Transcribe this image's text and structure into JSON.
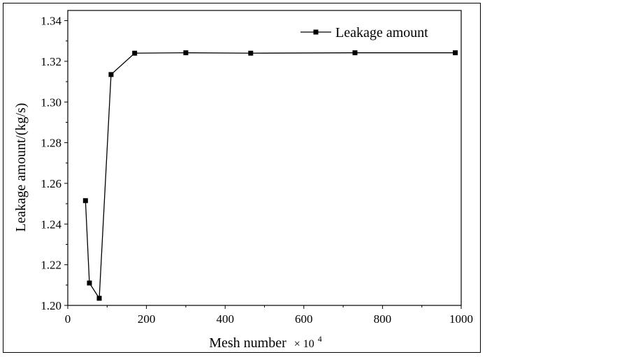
{
  "chart_data": {
    "type": "line",
    "title": "",
    "xlabel": "Mesh number",
    "xlabel_multiplier": "× 10",
    "xlabel_exponent": "4",
    "ylabel": "Leakage amount/(kg/s)",
    "xlim": [
      0,
      1000
    ],
    "ylim": [
      1.2,
      1.345
    ],
    "xticks": [
      0,
      200,
      400,
      600,
      800,
      1000
    ],
    "yticks": [
      1.2,
      1.22,
      1.24,
      1.26,
      1.28,
      1.3,
      1.32,
      1.34
    ],
    "ytick_labels": [
      "1.20",
      "1.22",
      "1.24",
      "1.26",
      "1.28",
      "1.30",
      "1.32",
      "1.34"
    ],
    "grid": false,
    "legend_position": "top-right",
    "series": [
      {
        "name": "Leakage amount",
        "color": "#000000",
        "marker": "square",
        "x": [
          45,
          55,
          80,
          110,
          170,
          300,
          465,
          730,
          985
        ],
        "y": [
          1.2515,
          1.211,
          1.2035,
          1.3135,
          1.324,
          1.3242,
          1.324,
          1.3242,
          1.3242
        ]
      }
    ]
  }
}
